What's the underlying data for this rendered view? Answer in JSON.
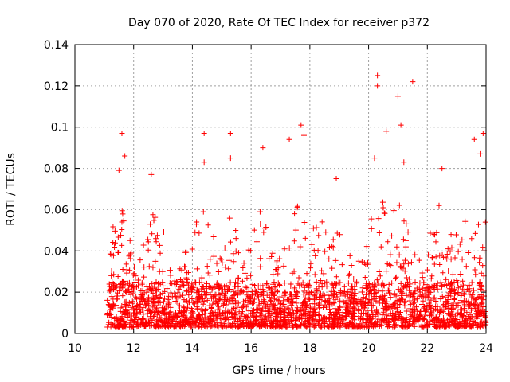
{
  "chart_data": {
    "type": "scatter",
    "title": "Day 070 of 2020, Rate Of TEC Index for receiver p372",
    "xlabel": "GPS time / hours",
    "ylabel": "ROTI / TECUs",
    "xlim": [
      10,
      24
    ],
    "ylim": [
      0,
      0.14
    ],
    "x_ticks": [
      "10",
      "12",
      "14",
      "16",
      "18",
      "20",
      "22",
      "24"
    ],
    "y_ticks": [
      "0",
      "0.02",
      "0.04",
      "0.06",
      "0.08",
      "0.1",
      "0.12",
      "0.14"
    ],
    "grid": true,
    "marker": "+",
    "color": "#ff0000",
    "x_coverage": [
      11.1,
      24.0
    ],
    "baseline_band": [
      0.003,
      0.025
    ],
    "notable_points": [
      {
        "x": 11.6,
        "y": 0.097
      },
      {
        "x": 11.7,
        "y": 0.086
      },
      {
        "x": 11.5,
        "y": 0.079
      },
      {
        "x": 12.6,
        "y": 0.077
      },
      {
        "x": 14.4,
        "y": 0.097
      },
      {
        "x": 14.4,
        "y": 0.083
      },
      {
        "x": 15.3,
        "y": 0.097
      },
      {
        "x": 15.3,
        "y": 0.085
      },
      {
        "x": 16.4,
        "y": 0.09
      },
      {
        "x": 17.3,
        "y": 0.094
      },
      {
        "x": 17.7,
        "y": 0.101
      },
      {
        "x": 17.8,
        "y": 0.096
      },
      {
        "x": 18.9,
        "y": 0.075
      },
      {
        "x": 20.2,
        "y": 0.085
      },
      {
        "x": 20.3,
        "y": 0.125
      },
      {
        "x": 20.3,
        "y": 0.12
      },
      {
        "x": 20.6,
        "y": 0.098
      },
      {
        "x": 21.0,
        "y": 0.115
      },
      {
        "x": 21.1,
        "y": 0.101
      },
      {
        "x": 21.2,
        "y": 0.083
      },
      {
        "x": 21.5,
        "y": 0.122
      },
      {
        "x": 22.5,
        "y": 0.08
      },
      {
        "x": 23.6,
        "y": 0.094
      },
      {
        "x": 23.9,
        "y": 0.097
      },
      {
        "x": 23.8,
        "y": 0.087
      }
    ],
    "activity_profile": [
      {
        "x": 11.1,
        "peak": 0.03
      },
      {
        "x": 11.3,
        "peak": 0.055
      },
      {
        "x": 11.6,
        "peak": 0.065
      },
      {
        "x": 11.9,
        "peak": 0.045
      },
      {
        "x": 12.2,
        "peak": 0.035
      },
      {
        "x": 12.6,
        "peak": 0.058
      },
      {
        "x": 13.0,
        "peak": 0.055
      },
      {
        "x": 13.4,
        "peak": 0.03
      },
      {
        "x": 13.8,
        "peak": 0.045
      },
      {
        "x": 14.2,
        "peak": 0.06
      },
      {
        "x": 14.5,
        "peak": 0.062
      },
      {
        "x": 14.9,
        "peak": 0.035
      },
      {
        "x": 15.3,
        "peak": 0.065
      },
      {
        "x": 15.7,
        "peak": 0.035
      },
      {
        "x": 16.1,
        "peak": 0.05
      },
      {
        "x": 16.4,
        "peak": 0.065
      },
      {
        "x": 16.8,
        "peak": 0.035
      },
      {
        "x": 17.2,
        "peak": 0.05
      },
      {
        "x": 17.6,
        "peak": 0.07
      },
      {
        "x": 18.0,
        "peak": 0.055
      },
      {
        "x": 18.4,
        "peak": 0.06
      },
      {
        "x": 18.8,
        "peak": 0.062
      },
      {
        "x": 19.2,
        "peak": 0.04
      },
      {
        "x": 19.6,
        "peak": 0.035
      },
      {
        "x": 20.0,
        "peak": 0.05
      },
      {
        "x": 20.3,
        "peak": 0.07
      },
      {
        "x": 20.7,
        "peak": 0.06
      },
      {
        "x": 21.1,
        "peak": 0.065
      },
      {
        "x": 21.5,
        "peak": 0.04
      },
      {
        "x": 21.9,
        "peak": 0.035
      },
      {
        "x": 22.3,
        "peak": 0.065
      },
      {
        "x": 22.7,
        "peak": 0.055
      },
      {
        "x": 23.1,
        "peak": 0.045
      },
      {
        "x": 23.5,
        "peak": 0.065
      },
      {
        "x": 23.8,
        "peak": 0.075
      },
      {
        "x": 24.0,
        "peak": 0.06
      }
    ]
  }
}
